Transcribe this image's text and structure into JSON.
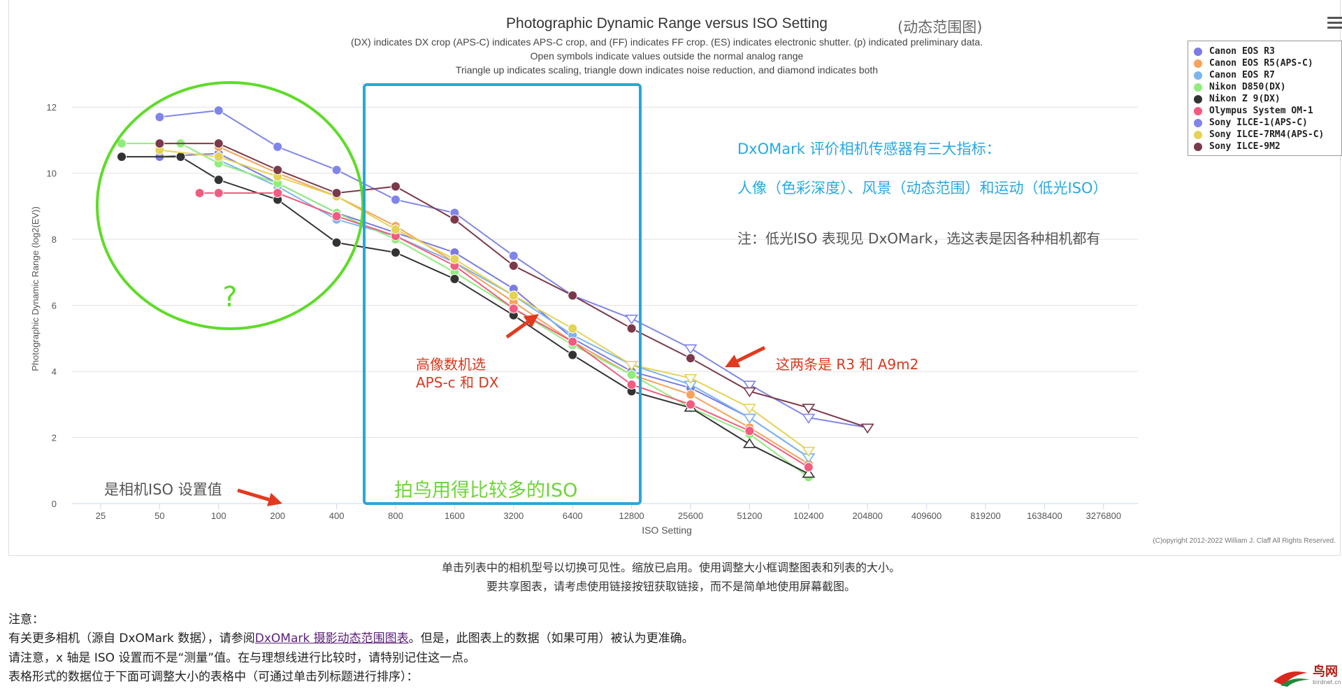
{
  "chart_data": {
    "type": "line",
    "title": "Photographic Dynamic Range versus ISO Setting",
    "subtitle_lines": [
      "(DX) indicates DX crop (APS-C) indicates APS-C crop, and (FF) indicates FF crop. (ES) indicates electronic shutter. (p) indicated preliminary data.",
      "Open symbols indicate values outside the normal analog range",
      "Triangle up indicates scaling, triangle down indicates noise reduction, and diamond indicates both"
    ],
    "xlabel": "ISO Setting",
    "ylabel": "Photographic Dynamic Range (log2(EV))",
    "x_scale": "log2",
    "x_ticks": [
      "25",
      "50",
      "100",
      "200",
      "400",
      "800",
      "1600",
      "3200",
      "6400",
      "12800",
      "25600",
      "51200",
      "102400",
      "204800",
      "409600",
      "819200",
      "1638400",
      "3276800"
    ],
    "y_ticks": [
      0,
      2,
      4,
      6,
      8,
      10,
      12
    ],
    "ylim": [
      0,
      13
    ],
    "grid": true,
    "legend_position": "top-right",
    "copyright": "(C)opyright 2012-2022 William J. Claff All Rights Reserved.",
    "series": [
      {
        "name": "Canon EOS R3",
        "color": "#7b7be3",
        "points": [
          [
            50,
            10.5
          ],
          [
            100,
            10.6
          ],
          [
            200,
            9.7
          ],
          [
            400,
            8.8
          ],
          [
            800,
            8.2
          ],
          [
            1600,
            7.6
          ],
          [
            3200,
            6.5
          ],
          [
            6400,
            5.0
          ],
          [
            12800,
            4.0
          ],
          [
            25600,
            3.5
          ],
          [
            51200,
            2.6
          ],
          [
            102400,
            1.4
          ]
        ],
        "open_from": 51200,
        "open_marker": "triangle-down"
      },
      {
        "name": "Canon EOS R5(APS-C)",
        "color": "#f7a35c",
        "points": [
          [
            100,
            10.8
          ],
          [
            200,
            10.0
          ],
          [
            400,
            9.3
          ],
          [
            800,
            8.4
          ],
          [
            1600,
            7.3
          ],
          [
            3200,
            6.1
          ],
          [
            6400,
            4.9
          ],
          [
            12800,
            3.9
          ],
          [
            25600,
            3.3
          ],
          [
            51200,
            2.3
          ],
          [
            102400,
            1.2
          ]
        ],
        "open_from": null,
        "open_marker": ""
      },
      {
        "name": "Canon EOS R7",
        "color": "#7cb5ec",
        "points": [
          [
            100,
            10.4
          ],
          [
            200,
            9.6
          ],
          [
            400,
            8.6
          ],
          [
            800,
            8.1
          ],
          [
            1600,
            7.3
          ],
          [
            3200,
            6.3
          ],
          [
            6400,
            5.1
          ],
          [
            12800,
            4.2
          ],
          [
            25600,
            3.6
          ],
          [
            51200,
            2.6
          ],
          [
            102400,
            1.4
          ]
        ],
        "open_from": 12800,
        "open_marker": "triangle-down"
      },
      {
        "name": "Nikon D850(DX)",
        "color": "#90ed7d",
        "points": [
          [
            32,
            10.9
          ],
          [
            64,
            10.9
          ],
          [
            100,
            10.3
          ],
          [
            200,
            9.7
          ],
          [
            400,
            8.8
          ],
          [
            800,
            8.0
          ],
          [
            1600,
            7.0
          ],
          [
            3200,
            5.9
          ],
          [
            6400,
            4.8
          ],
          [
            12800,
            3.9
          ],
          [
            25600,
            2.9
          ],
          [
            51200,
            2.1
          ],
          [
            102400,
            0.8
          ]
        ],
        "open_from": null,
        "open_marker": ""
      },
      {
        "name": "Nikon Z 9(DX)",
        "color": "#333333",
        "points": [
          [
            32,
            10.5
          ],
          [
            64,
            10.5
          ],
          [
            100,
            9.8
          ],
          [
            200,
            9.2
          ],
          [
            400,
            7.9
          ],
          [
            800,
            7.6
          ],
          [
            1600,
            6.8
          ],
          [
            3200,
            5.7
          ],
          [
            6400,
            4.5
          ],
          [
            12800,
            3.4
          ],
          [
            25600,
            2.9
          ],
          [
            51200,
            1.8
          ],
          [
            102400,
            0.9
          ]
        ],
        "open_from": 25600,
        "open_marker": "triangle-up"
      },
      {
        "name": "Olympus System OM-1",
        "color": "#f15c80",
        "points": [
          [
            80,
            9.4
          ],
          [
            100,
            9.4
          ],
          [
            200,
            9.4
          ],
          [
            400,
            8.7
          ],
          [
            800,
            8.1
          ],
          [
            1600,
            7.2
          ],
          [
            3200,
            5.9
          ],
          [
            6400,
            4.9
          ],
          [
            12800,
            3.6
          ],
          [
            25600,
            3.0
          ],
          [
            51200,
            2.2
          ],
          [
            102400,
            1.1
          ]
        ],
        "open_from": null,
        "open_marker": ""
      },
      {
        "name": "Sony ILCE-1(APS-C)",
        "color": "#8085e9",
        "points": [
          [
            50,
            11.7
          ],
          [
            100,
            11.9
          ],
          [
            200,
            10.8
          ],
          [
            400,
            10.1
          ],
          [
            800,
            9.2
          ],
          [
            1600,
            8.8
          ],
          [
            3200,
            7.5
          ],
          [
            6400,
            6.3
          ],
          [
            12800,
            5.6
          ],
          [
            25600,
            4.7
          ],
          [
            51200,
            3.6
          ],
          [
            102400,
            2.6
          ],
          [
            204800,
            2.3
          ]
        ],
        "open_from": 12800,
        "open_marker": "triangle-down"
      },
      {
        "name": "Sony ILCE-7RM4(APS-C)",
        "color": "#e4d354",
        "points": [
          [
            50,
            10.7
          ],
          [
            100,
            10.5
          ],
          [
            200,
            9.9
          ],
          [
            400,
            9.3
          ],
          [
            800,
            8.3
          ],
          [
            1600,
            7.4
          ],
          [
            3200,
            6.3
          ],
          [
            6400,
            5.3
          ],
          [
            12800,
            4.2
          ],
          [
            25600,
            3.8
          ],
          [
            51200,
            2.9
          ],
          [
            102400,
            1.6
          ]
        ],
        "open_from": 12800,
        "open_marker": "triangle-down"
      },
      {
        "name": "Sony ILCE-9M2",
        "color": "#7b3a4a",
        "points": [
          [
            50,
            10.9
          ],
          [
            100,
            10.9
          ],
          [
            200,
            10.1
          ],
          [
            400,
            9.4
          ],
          [
            800,
            9.6
          ],
          [
            1600,
            8.6
          ],
          [
            3200,
            7.2
          ],
          [
            6400,
            6.3
          ],
          [
            12800,
            5.3
          ],
          [
            25600,
            4.4
          ],
          [
            51200,
            3.4
          ],
          [
            102400,
            2.9
          ],
          [
            204800,
            2.3
          ]
        ],
        "open_from": 51200,
        "open_marker": "triangle-down"
      }
    ],
    "annotations": {
      "dynamic_range_tag": "(动态范围图)",
      "dxomark_line1": "DxOMark 评价相机传感器有三大指标：",
      "dxomark_line2": "人像（色彩深度）、风景（动态范围）和运动（低光ISO）",
      "dxomark_line3": "注：低光ISO 表现见 DxOMark，选这表是因各种相机都有",
      "question": "?",
      "high_res_line1": "高像数机选",
      "high_res_line2": "APS-c 和 DX",
      "two_lines": "这两条是 R3 和 A9m2",
      "iso_setting_note": "是相机ISO 设置值",
      "bird_iso": "拍鸟用得比较多的ISO"
    },
    "highlight_colors": {
      "circle": "#5edc28",
      "box": "#2aa5dc",
      "arrow": "#e23a1e",
      "cyan_text": "#27a9e1",
      "red_text": "#d9381e",
      "green_text": "#6ed43a"
    }
  },
  "notice": {
    "line1": "单击列表中的相机型号以切换可见性。缩放已启用。使用调整大小框调整图表和列表的大小。",
    "line2": "要共享图表，请考虑使用链接按钮获取链接，而不是简单地使用屏幕截图。"
  },
  "notes": {
    "heading": "注意：",
    "line1_prefix": "有关更多相机（源自 DxOMark 数据），请参阅",
    "line1_link": "DxOMark 摄影动态范围图表",
    "line1_suffix": "。但是，此图表上的数据（如果可用）被认为更准确。",
    "line2": "请注意，x 轴是 ISO 设置而不是“测量”值。在与理想线进行比较时，请特别记住这一点。",
    "line3": "表格形式的数据位于下面可调整大小的表格中（可通过单击列标题进行排序）："
  },
  "watermark": {
    "text": "鸟网",
    "sub": "birdnet.cn"
  },
  "icons": {
    "menu": "hamburger-menu-icon"
  }
}
